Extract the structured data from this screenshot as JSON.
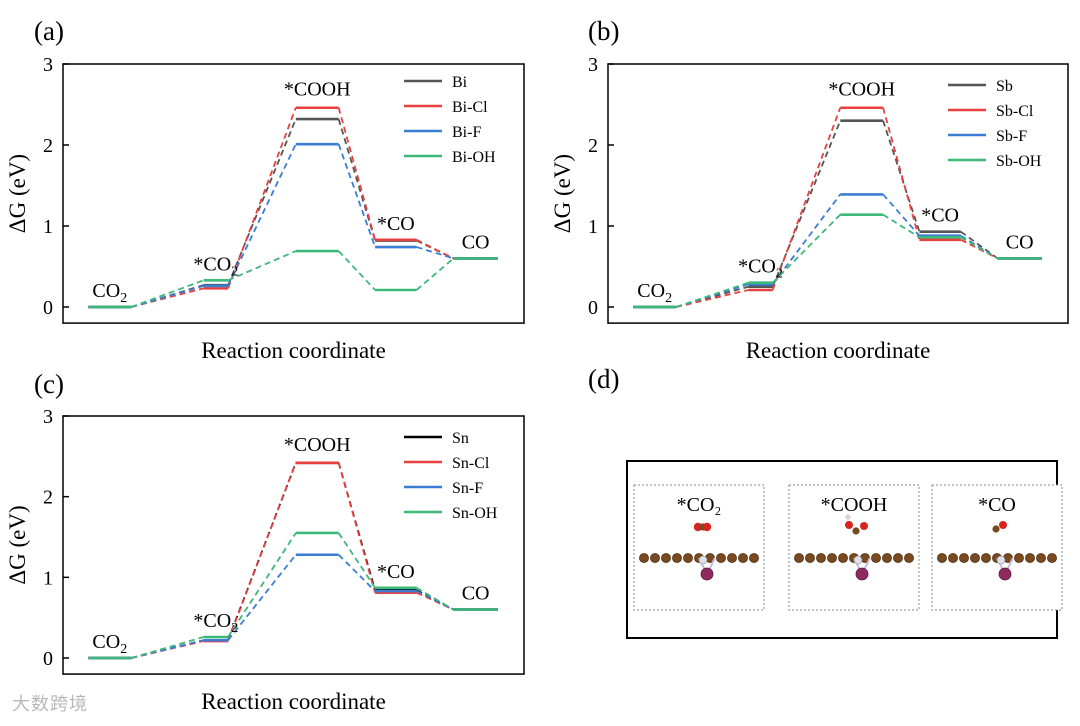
{
  "figure": {
    "panel_d": {
      "label": "(d)",
      "boxes": [
        {
          "label": "*CO₂",
          "adsorbate": "co2"
        },
        {
          "label": "*COOH",
          "adsorbate": "cooh"
        },
        {
          "label": "*CO",
          "adsorbate": "co"
        }
      ]
    },
    "watermark": "大数跨境"
  },
  "chart_data": [
    {
      "type": "line",
      "panel": "(a)",
      "xlabel": "Reaction coordinate",
      "ylabel": "ΔG (eV)",
      "ylim": [
        -0.1,
        3.0
      ],
      "yticks": [
        0,
        1,
        2,
        3
      ],
      "states": [
        {
          "label": "CO",
          "sub": "2"
        },
        {
          "label": "*CO",
          "sub": "2"
        },
        {
          "label": "*COOH",
          "sub": ""
        },
        {
          "label": "*CO",
          "sub": ""
        },
        {
          "label": "CO",
          "sub": ""
        }
      ],
      "series": [
        {
          "name": "Bi",
          "color": "#555555",
          "values": [
            0,
            0.27,
            2.32,
            0.82,
            0.6
          ]
        },
        {
          "name": "Bi-Cl",
          "color": "#e84040",
          "values": [
            0,
            0.23,
            2.46,
            0.83,
            0.6
          ]
        },
        {
          "name": "Bi-F",
          "color": "#3a7ed4",
          "values": [
            0,
            0.26,
            2.01,
            0.74,
            0.6
          ]
        },
        {
          "name": "Bi-OH",
          "color": "#3cb878",
          "values": [
            0,
            0.33,
            0.69,
            0.21,
            0.6
          ]
        }
      ]
    },
    {
      "type": "line",
      "panel": "(b)",
      "xlabel": "Reaction coordinate",
      "ylabel": "ΔG (eV)",
      "ylim": [
        -0.1,
        3.0
      ],
      "yticks": [
        0,
        1,
        2,
        3
      ],
      "states": [
        {
          "label": "CO",
          "sub": "2"
        },
        {
          "label": "*CO",
          "sub": "2"
        },
        {
          "label": "*COOH",
          "sub": ""
        },
        {
          "label": "*CO",
          "sub": ""
        },
        {
          "label": "CO",
          "sub": ""
        }
      ],
      "series": [
        {
          "name": "Sb",
          "color": "#555555",
          "values": [
            0,
            0.25,
            2.3,
            0.93,
            0.6
          ]
        },
        {
          "name": "Sb-Cl",
          "color": "#e84040",
          "values": [
            0,
            0.21,
            2.46,
            0.83,
            0.6
          ]
        },
        {
          "name": "Sb-F",
          "color": "#3a7ed4",
          "values": [
            0,
            0.28,
            1.39,
            0.88,
            0.6
          ]
        },
        {
          "name": "Sb-OH",
          "color": "#3cb878",
          "values": [
            0,
            0.3,
            1.14,
            0.86,
            0.6
          ]
        }
      ]
    },
    {
      "type": "line",
      "panel": "(c)",
      "xlabel": "Reaction coordinate",
      "ylabel": "ΔG (eV)",
      "ylim": [
        -0.1,
        3.0
      ],
      "yticks": [
        0,
        1,
        2,
        3
      ],
      "states": [
        {
          "label": "CO",
          "sub": "2"
        },
        {
          "label": "*CO",
          "sub": "2"
        },
        {
          "label": "*COOH",
          "sub": ""
        },
        {
          "label": "*CO",
          "sub": ""
        },
        {
          "label": "CO",
          "sub": ""
        }
      ],
      "series": [
        {
          "name": "Sn",
          "color": "#000000",
          "values": [
            0,
            0.22,
            2.42,
            0.84,
            0.6
          ]
        },
        {
          "name": "Sn-Cl",
          "color": "#e84040",
          "values": [
            0,
            0.21,
            2.42,
            0.81,
            0.6
          ]
        },
        {
          "name": "Sn-F",
          "color": "#3a7ed4",
          "values": [
            0,
            0.22,
            1.28,
            0.83,
            0.6
          ]
        },
        {
          "name": "Sn-OH",
          "color": "#3cb878",
          "values": [
            0,
            0.26,
            1.55,
            0.87,
            0.6
          ]
        }
      ]
    }
  ]
}
